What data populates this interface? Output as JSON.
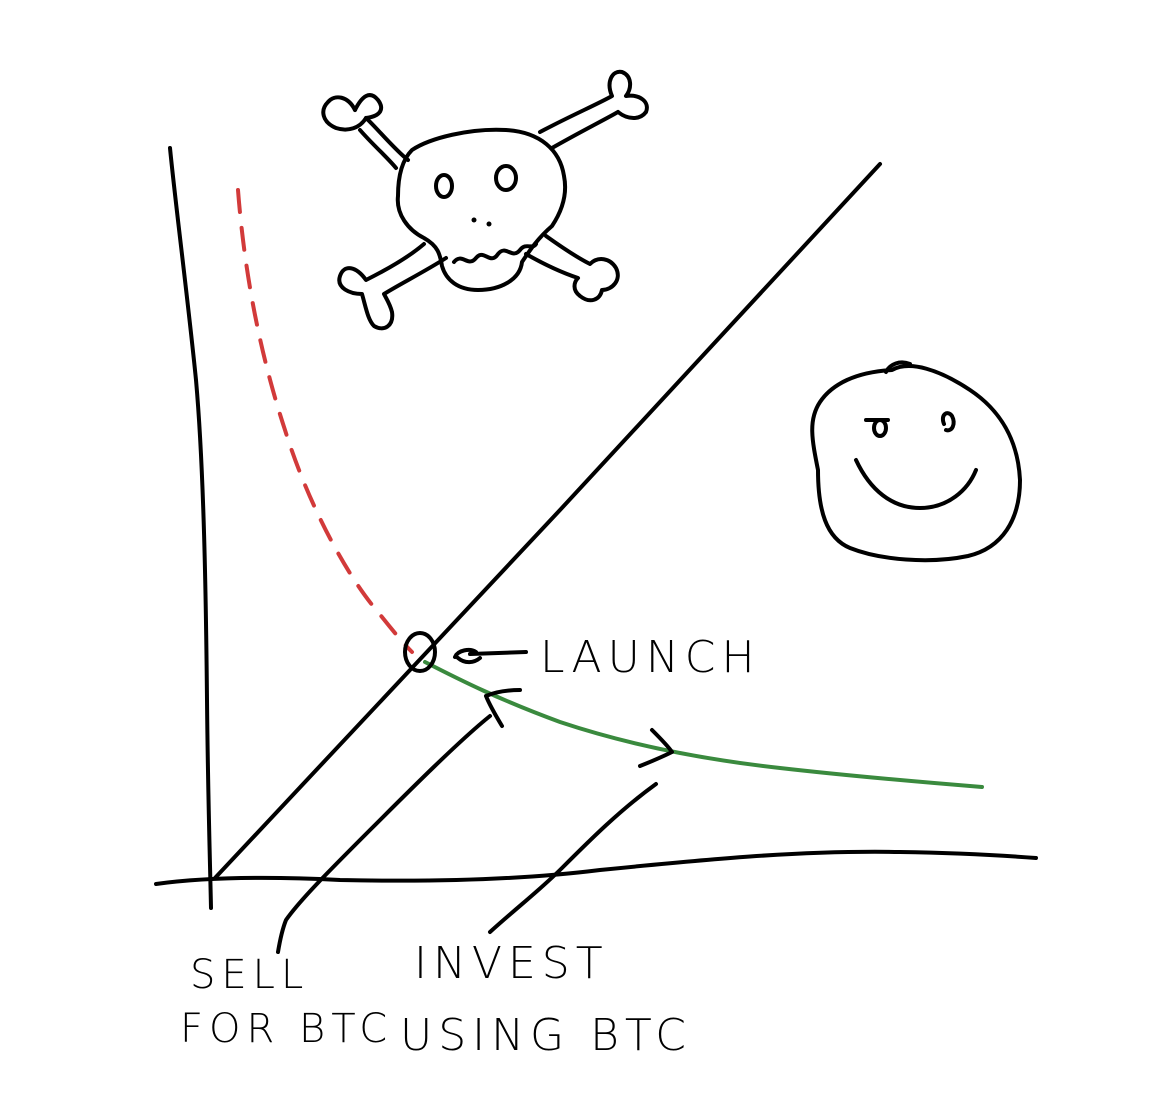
{
  "labels": {
    "launch": "LAUNCH",
    "sell_line1": "SELL",
    "sell_line2": "FOR BTC",
    "invest_line1": "INVEST",
    "invest_line2": "USING BTC"
  },
  "icons": {
    "skull": "skull-and-crossbones-icon",
    "smiley": "smiley-face-icon"
  },
  "colors": {
    "ink": "#000000",
    "sell_path": "#d23a3a",
    "invest_path": "#3a8a3e",
    "background": "#ffffff"
  }
}
